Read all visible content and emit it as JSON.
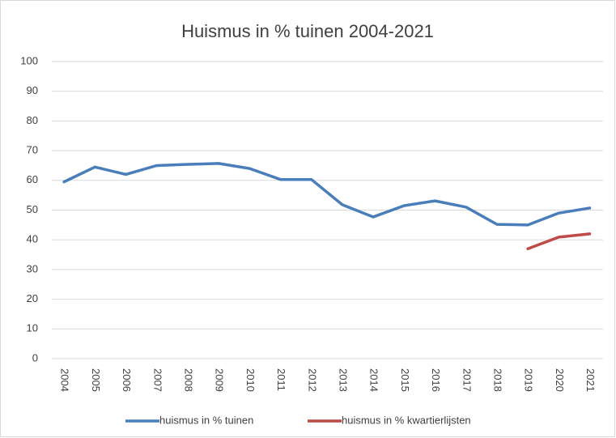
{
  "chart_data": {
    "type": "line",
    "title": "Huismus in % tuinen 2004-2021",
    "categories": [
      "2004",
      "2005",
      "2006",
      "2007",
      "2008",
      "2009",
      "2010",
      "2011",
      "2012",
      "2013",
      "2014",
      "2015",
      "2016",
      "2017",
      "2018",
      "2019",
      "2020",
      "2021"
    ],
    "series": [
      {
        "name": "huismus in % tuinen",
        "color": "#4a7ebb",
        "values": [
          59.5,
          64.5,
          62,
          65,
          65.4,
          65.7,
          64,
          60.3,
          60.3,
          51.8,
          47.7,
          51.5,
          53.1,
          51,
          45.2,
          45,
          49,
          50.7
        ]
      },
      {
        "name": "huismus in % kwartierlijsten",
        "color": "#be4b48",
        "values": [
          null,
          null,
          null,
          null,
          null,
          null,
          null,
          null,
          null,
          null,
          null,
          null,
          null,
          null,
          null,
          37,
          40.9,
          42
        ]
      }
    ],
    "ylim": [
      0,
      100
    ],
    "yticks": [
      0,
      10,
      20,
      30,
      40,
      50,
      60,
      70,
      80,
      90,
      100
    ],
    "grid": true,
    "legend": "bottom"
  }
}
